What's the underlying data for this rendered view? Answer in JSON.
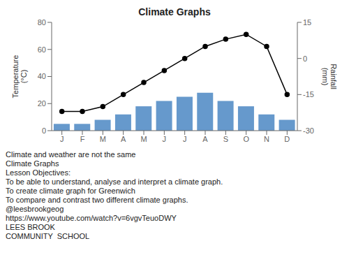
{
  "chart_data": {
    "type": "bar",
    "title": "Climate Graphs",
    "categories": [
      "J",
      "F",
      "M",
      "A",
      "M",
      "J",
      "J",
      "A",
      "S",
      "O",
      "N",
      "D"
    ],
    "series": [
      {
        "type": "bar",
        "color": "#6699cc",
        "axis": "y",
        "values": [
          5,
          5,
          8,
          12,
          18,
          22,
          25,
          28,
          22,
          18,
          12,
          8
        ]
      },
      {
        "type": "line",
        "color": "#000000",
        "marker": "o",
        "axis": "y2",
        "values": [
          -22,
          -22,
          -20,
          -15,
          -10,
          -5,
          0,
          5,
          8,
          10,
          5,
          -15
        ]
      }
    ],
    "ylabel": "Temperature\n(°C)",
    "y2label": "Rainfall\n(mm)",
    "ylim": [
      0,
      80
    ],
    "yticks": [
      0,
      20,
      40,
      60,
      80
    ],
    "y2lim": [
      -30,
      15
    ],
    "y2ticks": [
      -30,
      -15,
      0,
      15
    ],
    "grid": false,
    "annotations": [
      "Climate and weather are not the same",
      "Climate Graphs",
      "Lesson Objectives:",
      "To be able to understand, analyse and interpret a climate graph.",
      "To create climate graph for Greenwich",
      "To compare and contrast two different climate graphs.",
      "@leesbrookgeog",
      "https://www.youtube.com/watch?v=6vgvTeuoDWY",
      "LEES BROOK",
      "COMMUNITY  SCHOOL"
    ]
  }
}
